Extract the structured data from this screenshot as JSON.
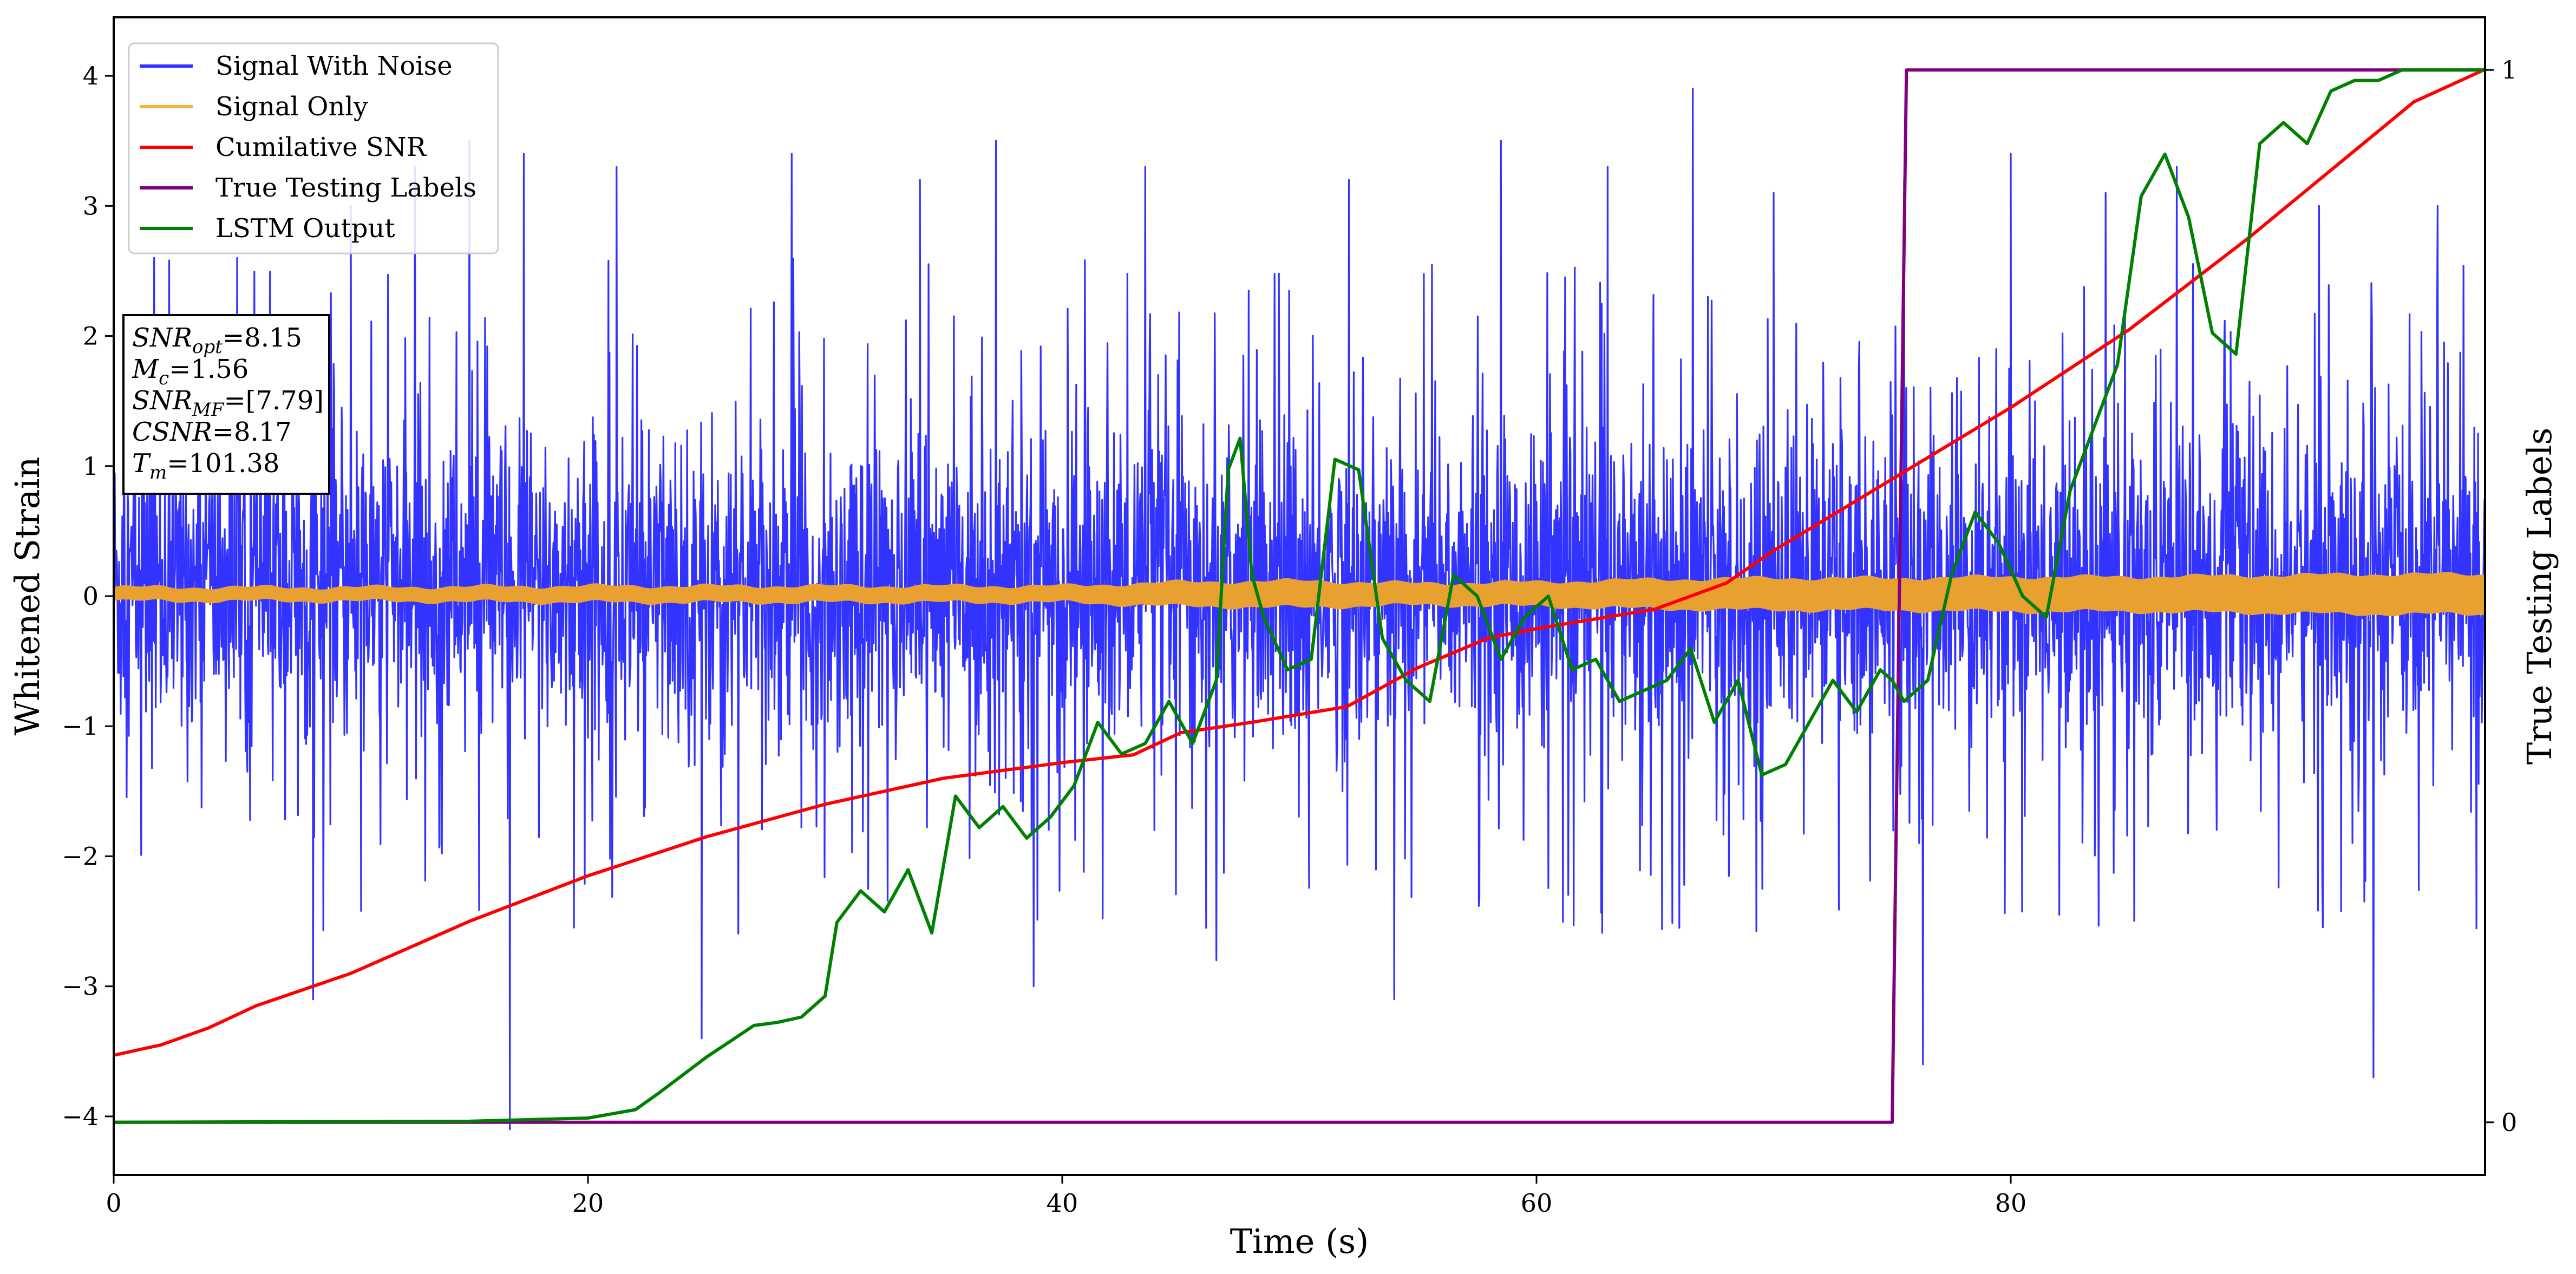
{
  "chart_data": {
    "type": "line",
    "title": "",
    "xlabel": "Time (s)",
    "ylabel": "Whitened Strain",
    "ylabel_right": "True Testing Labels",
    "xlim": [
      0,
      100
    ],
    "ylim": [
      -4.45,
      4.45
    ],
    "ylim_right": [
      -0.05,
      1.05
    ],
    "x_ticks": [
      0,
      20,
      40,
      60,
      80
    ],
    "x_tick_labels": [
      "0",
      "20",
      "40",
      "60",
      "80"
    ],
    "y_ticks": [
      -4,
      -3,
      -2,
      -1,
      0,
      1,
      2,
      3,
      4
    ],
    "y_tick_labels": [
      "−4",
      "−3",
      "−2",
      "−1",
      "0",
      "1",
      "2",
      "3",
      "4"
    ],
    "y_right_ticks": [
      0,
      1
    ],
    "y_right_tick_labels": [
      "0",
      "1"
    ],
    "grid": false,
    "legend_position": "top-left",
    "legend": [
      "Signal With Noise",
      "Signal Only",
      "Cumilative SNR",
      "True Testing Labels",
      "LSTM Output"
    ],
    "colors": {
      "noise": "#3333ff",
      "signal": "#e8a030",
      "signal_legend": "#f5b342",
      "csnr": "#ff0000",
      "labels": "#800080",
      "lstm": "#008000"
    },
    "series": [
      {
        "name": "Signal With Noise",
        "axis": "left",
        "sampled": true,
        "typical_range": [
          -1.1,
          1.3
        ],
        "extremes": [
          [
            1.7,
            2.6
          ],
          [
            5.2,
            2.6
          ],
          [
            8.4,
            -3.1
          ],
          [
            10.0,
            3.0
          ],
          [
            12.7,
            3.3
          ],
          [
            15.0,
            3.5
          ],
          [
            16.7,
            -4.1
          ],
          [
            17.3,
            3.4
          ],
          [
            21.2,
            3.3
          ],
          [
            24.8,
            -3.4
          ],
          [
            28.6,
            3.4
          ],
          [
            34.0,
            3.2
          ],
          [
            37.2,
            3.5
          ],
          [
            38.8,
            -3.0
          ],
          [
            43.5,
            3.3
          ],
          [
            46.5,
            -2.8
          ],
          [
            52.1,
            3.2
          ],
          [
            54.0,
            -3.1
          ],
          [
            58.5,
            3.5
          ],
          [
            63.0,
            3.3
          ],
          [
            66.6,
            3.9
          ],
          [
            70.0,
            3.1
          ],
          [
            75.5,
            3.2
          ],
          [
            76.3,
            -3.6
          ],
          [
            80.0,
            3.4
          ],
          [
            84.0,
            3.1
          ],
          [
            87.0,
            3.3
          ],
          [
            93.0,
            3.0
          ],
          [
            95.3,
            -3.7
          ],
          [
            98.0,
            3.0
          ]
        ]
      },
      {
        "name": "Signal Only",
        "axis": "left",
        "envelope": {
          "x": [
            0,
            10,
            20,
            30,
            40,
            45,
            50,
            55,
            60,
            65,
            70,
            75,
            80,
            85,
            90,
            95,
            100
          ],
          "y": [
            0.05,
            0.05,
            0.06,
            0.06,
            0.06,
            0.09,
            0.1,
            0.08,
            0.09,
            0.11,
            0.12,
            0.12,
            0.13,
            0.13,
            0.14,
            0.15,
            0.15
          ]
        }
      },
      {
        "name": "Cumilative SNR",
        "axis": "left",
        "x": [
          0,
          2,
          4,
          6,
          10,
          15,
          20,
          25,
          30,
          35,
          40,
          43,
          45,
          48,
          52,
          55,
          58,
          60,
          65,
          68,
          70,
          75,
          80,
          85,
          90,
          95,
          97,
          100
        ],
        "y": [
          -3.53,
          -3.45,
          -3.32,
          -3.15,
          -2.9,
          -2.5,
          -2.15,
          -1.85,
          -1.6,
          -1.4,
          -1.28,
          -1.22,
          -1.05,
          -0.97,
          -0.85,
          -0.55,
          -0.32,
          -0.25,
          -0.1,
          0.1,
          0.35,
          0.9,
          1.45,
          2.05,
          2.75,
          3.5,
          3.8,
          4.05
        ]
      },
      {
        "name": "True Testing Labels",
        "axis": "right",
        "x": [
          0,
          75.0,
          75.6,
          100
        ],
        "y": [
          0,
          0,
          1,
          1
        ]
      },
      {
        "name": "LSTM Output",
        "axis": "right",
        "x": [
          0,
          15,
          20,
          22,
          23,
          24,
          25,
          26,
          27,
          28,
          29,
          30,
          30.5,
          31.5,
          32.5,
          33.5,
          34.5,
          35.5,
          36.5,
          37.5,
          38.5,
          39.5,
          40.5,
          41.5,
          42.5,
          43.5,
          44.5,
          45.5,
          46.5,
          47.0,
          47.5,
          48.0,
          48.5,
          49.5,
          50.5,
          51.5,
          52.5,
          53.5,
          54.5,
          55.5,
          56.5,
          57.5,
          58.5,
          59.5,
          60.5,
          61.5,
          62.5,
          63.5,
          64.5,
          65.5,
          66.5,
          67.5,
          68.5,
          69.5,
          70.5,
          71.5,
          72.5,
          73.5,
          74.5,
          75.0,
          75.5,
          76.5,
          77.5,
          78.5,
          79.5,
          80.5,
          81.5,
          82.5,
          83.5,
          84.5,
          85.5,
          86.5,
          87.5,
          88.5,
          89.5,
          90.5,
          91.5,
          92.5,
          93.5,
          94.5,
          95.5,
          96.5,
          97.5,
          98.5,
          100
        ],
        "y": [
          0,
          0.001,
          0.004,
          0.012,
          0.028,
          0.045,
          0.062,
          0.077,
          0.092,
          0.095,
          0.1,
          0.12,
          0.19,
          0.22,
          0.2,
          0.24,
          0.18,
          0.31,
          0.28,
          0.3,
          0.27,
          0.29,
          0.32,
          0.38,
          0.35,
          0.36,
          0.4,
          0.36,
          0.42,
          0.62,
          0.65,
          0.52,
          0.48,
          0.43,
          0.44,
          0.63,
          0.62,
          0.46,
          0.42,
          0.4,
          0.52,
          0.5,
          0.44,
          0.48,
          0.5,
          0.43,
          0.44,
          0.4,
          0.41,
          0.42,
          0.45,
          0.38,
          0.42,
          0.33,
          0.34,
          0.38,
          0.42,
          0.39,
          0.43,
          0.42,
          0.4,
          0.42,
          0.52,
          0.58,
          0.55,
          0.5,
          0.48,
          0.6,
          0.66,
          0.72,
          0.88,
          0.92,
          0.86,
          0.75,
          0.73,
          0.93,
          0.95,
          0.93,
          0.98,
          0.99,
          0.99,
          1.0,
          1.0,
          1.0,
          1.0
        ]
      }
    ],
    "annotation": {
      "lines": [
        {
          "sym": "SNR",
          "sub": "opt",
          "val": "=8.15"
        },
        {
          "sym": "M",
          "sub": "c",
          "val": "=1.56"
        },
        {
          "sym": "SNR",
          "sub": "MF",
          "val": "=[7.79]"
        },
        {
          "sym": "CSNR",
          "sub": "",
          "val": "=8.17"
        },
        {
          "sym": "T",
          "sub": "m",
          "val": "=101.38"
        }
      ]
    }
  }
}
